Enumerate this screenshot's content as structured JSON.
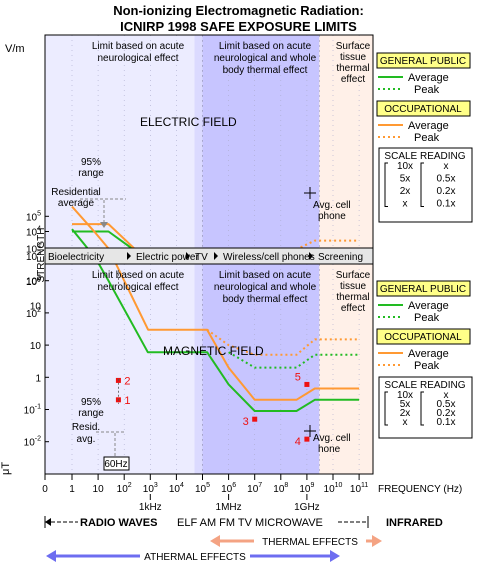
{
  "page": {
    "title_line1": "Non-ionizing Electromagnetic Radiation:",
    "title_line2": "ICNIRP 1998  SAFE EXPOSURE LIMITS"
  },
  "colors": {
    "frame": "#000000",
    "lowBand": "#ececff",
    "midBand": "#c7c5ff",
    "highBand": "#fff0e8",
    "general": "#22bb22",
    "occupational": "#ff9933",
    "point": "#ee1111",
    "legendTitleBg": "#ffff88",
    "gray": "#888888",
    "thermal": "#f4a383",
    "athermal": "#6d6df0"
  },
  "upper_panel": {
    "unit_label": "V/m",
    "field_label": "ELECTRIC FIELD",
    "region_labels": [
      [
        "Limit based on acute",
        "neurological effect"
      ],
      [
        "Limit based on acute",
        "neurological and whole",
        "body thermal effect"
      ],
      [
        "Surface",
        "tissue",
        "thermal",
        "effect"
      ]
    ],
    "y_ticks": [
      "10",
      "10^2",
      "10^3",
      "10^4"
    ],
    "annotations": {
      "range_label": [
        "95%",
        "range"
      ],
      "residential_label": [
        "Residential",
        "average"
      ],
      "cell_label": [
        "Avg. cell",
        "phone"
      ]
    }
  },
  "lower_panel": {
    "unit_label": "μT",
    "field_label": "MAGNETIC FIELD",
    "region_labels": [
      [
        "Limit based on acute",
        "neurological effect"
      ],
      [
        "Limit based on acute",
        "neurological and whole",
        "body thermal effect"
      ],
      [
        "Surface",
        "tissue",
        "thermal",
        "effect"
      ]
    ],
    "y_ticks": [
      "10^-2",
      "10^-1",
      "1",
      "10",
      "10^2",
      "10^3",
      "10^4",
      "10^5"
    ],
    "annotations": {
      "range_label": [
        "95%",
        "range"
      ],
      "residential_label": [
        "Resid.",
        "avg."
      ],
      "cell_label": [
        "Avg. cell",
        "hone"
      ],
      "freq_box": "60Hz"
    }
  },
  "strength_label": "STRENGTH",
  "band_strip": [
    "Bioelectricity",
    "Electric power",
    "TV",
    "Wireless/cell phones",
    "Screening"
  ],
  "x_axis": {
    "ticks": [
      "0",
      "1",
      "10",
      "10^2",
      "10^3",
      "10^4",
      "10^5",
      "10^6",
      "10^7",
      "10^8",
      "10^9",
      "10^10",
      "10^11"
    ],
    "sub_labels": [
      "1kHz",
      "1MHz",
      "1GHz"
    ],
    "label": "FREQUENCY (Hz)"
  },
  "spectrum": {
    "radio_waves": "RADIO WAVES",
    "names": [
      "ELF",
      "AM",
      "FM",
      "TV",
      "MICROWAVE"
    ],
    "infrared": "INFRARED",
    "thermal": "THERMAL EFFECTS",
    "athermal": "ATHERMAL EFFECTS"
  },
  "legend": {
    "general": "GENERAL PUBLIC",
    "occupational": "OCCUPATIONAL",
    "average": "Average",
    "peak": "Peak",
    "scale_title": "SCALE READING",
    "scale_left": [
      "10x",
      "5x",
      "2x",
      "x"
    ],
    "scale_right": [
      "x",
      "0.5x",
      "0.2x",
      "0.1x"
    ]
  },
  "chart_data": [
    {
      "type": "line",
      "title": "ELECTRIC FIELD",
      "ylabel": "V/m",
      "xlabel": "FREQUENCY (Hz)",
      "x_scale": "log",
      "y_scale": "log",
      "series": [
        {
          "name": "General public Average",
          "style": "solid",
          "color": "general",
          "points": [
            [
              1,
              10000
            ],
            [
              25,
              10000
            ],
            [
              1000,
              600
            ],
            [
              3000,
              600
            ],
            [
              100000,
              87
            ],
            [
              10000000,
              28
            ],
            [
              400000000,
              28
            ],
            [
              2000000000,
              61
            ],
            [
              100000000000,
              61
            ]
          ]
        },
        {
          "name": "General public Peak",
          "style": "dotted",
          "color": "general",
          "points": [
            [
              1000000,
              87
            ],
            [
              10000000,
              560
            ],
            [
              400000000,
              560
            ],
            [
              2000000000,
              1900
            ],
            [
              100000000000,
              1900
            ]
          ]
        },
        {
          "name": "Occupational Average",
          "style": "solid",
          "color": "occupational",
          "points": [
            [
              1,
              20000
            ],
            [
              25,
              20000
            ],
            [
              820,
              610
            ],
            [
              3000,
              610
            ],
            [
              100000,
              610
            ],
            [
              3000000,
              610
            ],
            [
              10000000,
              61
            ],
            [
              400000000,
              61
            ],
            [
              2000000000,
              137
            ],
            [
              100000000000,
              137
            ]
          ]
        },
        {
          "name": "Occupational Peak",
          "style": "dotted",
          "color": "occupational",
          "points": [
            [
              100000,
              610
            ],
            [
              3000000,
              1500
            ],
            [
              10000000,
              1900
            ],
            [
              400000000,
              1900
            ],
            [
              2000000000,
              4300
            ],
            [
              100000000000,
              4300
            ]
          ]
        }
      ],
      "points": [
        {
          "label": "1",
          "x": 60,
          "y": 120
        },
        {
          "label": "2",
          "x": 60,
          "y": 270
        },
        {
          "label": "3",
          "x": 10000000,
          "y": 23
        },
        {
          "label": "4",
          "x": 1000000000,
          "y": 5
        },
        {
          "label": "5",
          "x": 1000000000,
          "y": 200
        }
      ]
    },
    {
      "type": "line",
      "title": "MAGNETIC FIELD",
      "ylabel": "μT",
      "xlabel": "FREQUENCY (Hz)",
      "x_scale": "log",
      "y_scale": "log",
      "series": [
        {
          "name": "General public Average",
          "style": "solid",
          "color": "general",
          "points": [
            [
              1,
              40000
            ],
            [
              8,
              5000
            ],
            [
              25,
              1000
            ],
            [
              800,
              6
            ],
            [
              3000,
              6
            ],
            [
              150000,
              6
            ],
            [
              1000000,
              0.6
            ],
            [
              10000000,
              0.09
            ],
            [
              400000000,
              0.09
            ],
            [
              2000000000,
              0.2
            ],
            [
              100000000000,
              0.2
            ]
          ]
        },
        {
          "name": "General public Peak",
          "style": "dotted",
          "color": "general",
          "points": [
            [
              1000000,
              6
            ],
            [
              10000000,
              2
            ],
            [
              400000000,
              2
            ],
            [
              2000000000,
              5
            ],
            [
              100000000000,
              5
            ]
          ]
        },
        {
          "name": "Occupational Average",
          "style": "solid",
          "color": "occupational",
          "points": [
            [
              1,
              200000
            ],
            [
              8,
              30000
            ],
            [
              25,
              10000
            ],
            [
              820,
              30
            ],
            [
              3000,
              30
            ],
            [
              150000,
              30
            ],
            [
              1000000,
              2
            ],
            [
              10000000,
              0.2
            ],
            [
              400000000,
              0.2
            ],
            [
              2000000000,
              0.45
            ],
            [
              100000000000,
              0.45
            ]
          ]
        },
        {
          "name": "Occupational Peak",
          "style": "dotted",
          "color": "occupational",
          "points": [
            [
              150000,
              30
            ],
            [
              1000000,
              10
            ],
            [
              10000000,
              5
            ],
            [
              400000000,
              5
            ],
            [
              2000000000,
              15
            ],
            [
              100000000000,
              15
            ]
          ]
        }
      ],
      "points": [
        {
          "label": "1",
          "x": 60,
          "y": 0.2
        },
        {
          "label": "2",
          "x": 60,
          "y": 0.8
        },
        {
          "label": "3",
          "x": 10000000,
          "y": 0.05
        },
        {
          "label": "4",
          "x": 1000000000,
          "y": 0.012
        },
        {
          "label": "5",
          "x": 1000000000,
          "y": 0.6
        }
      ]
    }
  ]
}
